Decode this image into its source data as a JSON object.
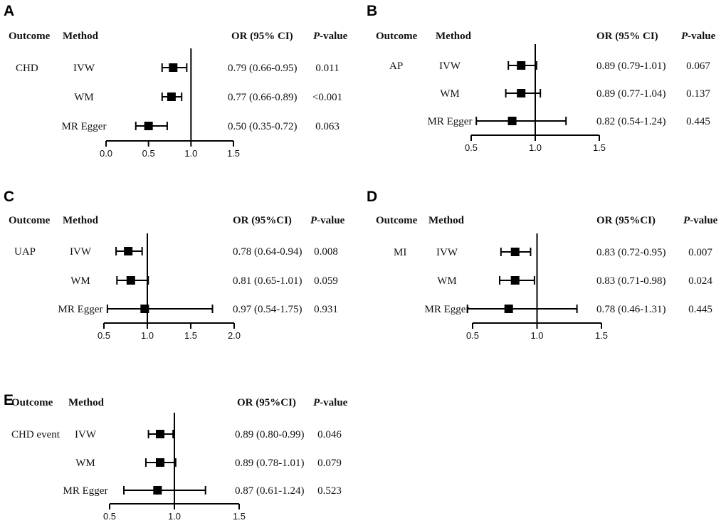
{
  "chart_data": [
    {
      "type": "forest",
      "panel": "A",
      "headers": {
        "outcome": "Outcome",
        "method": "Method",
        "or": "OR (95% CI)",
        "p_prefix": "P",
        "p_suffix": "-value"
      },
      "outcome": "CHD",
      "reference": 1.0,
      "xlim": [
        0.0,
        1.5
      ],
      "ticks": [
        "0.0",
        "0.5",
        "1.0",
        "1.5"
      ],
      "rows": [
        {
          "method": "IVW",
          "or": 0.79,
          "lo": 0.66,
          "hi": 0.95,
          "or_text": "0.79 (0.66-0.95)",
          "p": "0.011"
        },
        {
          "method": "WM",
          "or": 0.77,
          "lo": 0.66,
          "hi": 0.89,
          "or_text": "0.77 (0.66-0.89)",
          "p": "<0.001"
        },
        {
          "method": "MR Egger",
          "or": 0.5,
          "lo": 0.35,
          "hi": 0.72,
          "or_text": "0.50 (0.35-0.72)",
          "p": "0.063"
        }
      ]
    },
    {
      "type": "forest",
      "panel": "B",
      "headers": {
        "outcome": "Outcome",
        "method": "Method",
        "or": "OR (95% CI)",
        "p_prefix": "P",
        "p_suffix": "-value"
      },
      "outcome": "AP",
      "reference": 1.0,
      "xlim": [
        0.5,
        1.5
      ],
      "ticks": [
        "0.5",
        "1.0",
        "1.5"
      ],
      "rows": [
        {
          "method": "IVW",
          "or": 0.89,
          "lo": 0.79,
          "hi": 1.01,
          "or_text": "0.89 (0.79-1.01)",
          "p": "0.067"
        },
        {
          "method": "WM",
          "or": 0.89,
          "lo": 0.77,
          "hi": 1.04,
          "or_text": "0.89 (0.77-1.04)",
          "p": "0.137"
        },
        {
          "method": "MR Egger",
          "or": 0.82,
          "lo": 0.54,
          "hi": 1.24,
          "or_text": "0.82 (0.54-1.24)",
          "p": "0.445"
        }
      ]
    },
    {
      "type": "forest",
      "panel": "C",
      "headers": {
        "outcome": "Outcome",
        "method": "Method",
        "or": "OR (95%CI)",
        "p_prefix": "P",
        "p_suffix": "-value"
      },
      "outcome": "UAP",
      "reference": 1.0,
      "xlim": [
        0.5,
        2.0
      ],
      "ticks": [
        "0.5",
        "1.0",
        "1.5",
        "2.0"
      ],
      "rows": [
        {
          "method": "IVW",
          "or": 0.78,
          "lo": 0.64,
          "hi": 0.94,
          "or_text": "0.78 (0.64-0.94)",
          "p": "0.008"
        },
        {
          "method": "WM",
          "or": 0.81,
          "lo": 0.65,
          "hi": 1.01,
          "or_text": "0.81 (0.65-1.01)",
          "p": "0.059"
        },
        {
          "method": "MR Egger",
          "or": 0.97,
          "lo": 0.54,
          "hi": 1.75,
          "or_text": "0.97 (0.54-1.75)",
          "p": "0.931"
        }
      ]
    },
    {
      "type": "forest",
      "panel": "D",
      "headers": {
        "outcome": "Outcome",
        "method": "Method",
        "or": "OR (95%CI)",
        "p_prefix": "P",
        "p_suffix": "-value"
      },
      "outcome": "MI",
      "reference": 1.0,
      "xlim": [
        0.5,
        1.5
      ],
      "ticks": [
        "0.5",
        "1.0",
        "1.5"
      ],
      "rows": [
        {
          "method": "IVW",
          "or": 0.83,
          "lo": 0.72,
          "hi": 0.95,
          "or_text": "0.83 (0.72-0.95)",
          "p": "0.007"
        },
        {
          "method": "WM",
          "or": 0.83,
          "lo": 0.71,
          "hi": 0.98,
          "or_text": "0.83 (0.71-0.98)",
          "p": "0.024"
        },
        {
          "method": "MR Egger",
          "or": 0.78,
          "lo": 0.46,
          "hi": 1.31,
          "or_text": "0.78 (0.46-1.31)",
          "p": "0.445"
        }
      ]
    },
    {
      "type": "forest",
      "panel": "E",
      "headers": {
        "outcome": "Outcome",
        "method": "Method",
        "or": "OR (95%CI)",
        "p_prefix": "P",
        "p_suffix": "-value"
      },
      "outcome": "CHD event",
      "reference": 1.0,
      "xlim": [
        0.5,
        1.5
      ],
      "ticks": [
        "0.5",
        "1.0",
        "1.5"
      ],
      "rows": [
        {
          "method": "IVW",
          "or": 0.89,
          "lo": 0.8,
          "hi": 0.99,
          "or_text": "0.89 (0.80-0.99)",
          "p": "0.046"
        },
        {
          "method": "WM",
          "or": 0.89,
          "lo": 0.78,
          "hi": 1.01,
          "or_text": "0.89 (0.78-1.01)",
          "p": "0.079"
        },
        {
          "method": "MR Egger",
          "or": 0.87,
          "lo": 0.61,
          "hi": 1.24,
          "or_text": "0.87 (0.61-1.24)",
          "p": "0.523"
        }
      ]
    }
  ]
}
